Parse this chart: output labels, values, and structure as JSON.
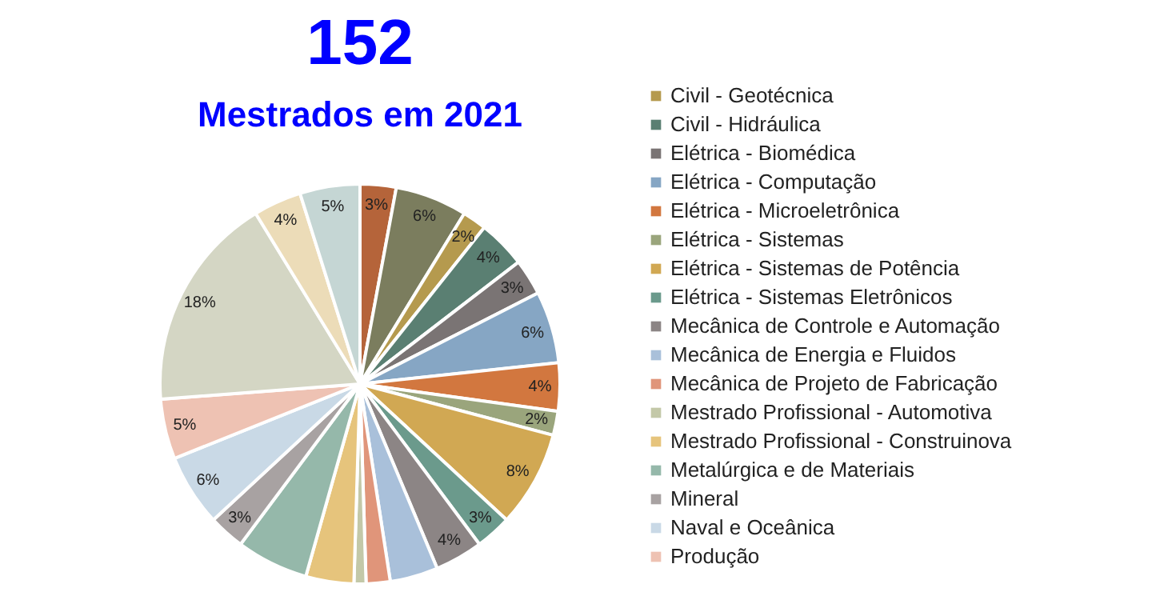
{
  "chart_data": {
    "type": "pie",
    "title": "152",
    "subtitle": "Mestrados  em 2021",
    "categories": [
      null,
      null,
      "Civil - Geotécnica",
      "Civil - Hidráulica",
      "Elétrica - Biomédica",
      "Elétrica - Computação",
      "Elétrica - Microeletrônica",
      "Elétrica - Sistemas",
      "Elétrica - Sistemas de Potência",
      "Elétrica - Sistemas Eletrônicos",
      "Mecânica de Controle e Automação",
      "Mecânica de Energia e Fluidos",
      "Mecânica de Projeto de Fabricação",
      "Mestrado Profissional - Automotiva",
      "Mestrado Profissional - Construinova",
      "Metalúrgica e de Materiais",
      "Mineral",
      "Naval e Oceânica",
      "Produção",
      null,
      null,
      null
    ],
    "values": [
      3,
      6,
      2,
      4,
      3,
      6,
      4,
      2,
      8,
      3,
      4,
      4,
      2,
      1,
      4,
      6,
      3,
      6,
      5,
      18,
      4,
      5
    ],
    "value_labels": [
      "3%",
      "6%",
      "2%",
      "4%",
      "3%",
      "6%",
      "4%",
      "2%",
      "8%",
      "3%",
      "4%",
      null,
      null,
      null,
      null,
      null,
      "3%",
      "6%",
      "5%",
      "18%",
      "4%",
      "5%"
    ],
    "colors": [
      "#b5643a",
      "#7b7d5e",
      "#b59a4e",
      "#5a7f72",
      "#7a7474",
      "#86a6c4",
      "#d2773f",
      "#9aa57c",
      "#d1a853",
      "#6b9a8c",
      "#8c8585",
      "#a9c0da",
      "#e0957a",
      "#c3c8a8",
      "#e6c47c",
      "#95b8aa",
      "#a8a2a2",
      "#c9d9e6",
      "#eec2b3",
      "#d4d6c4",
      "#ecdcb8",
      "#c5d6d4"
    ],
    "legend": "right"
  }
}
